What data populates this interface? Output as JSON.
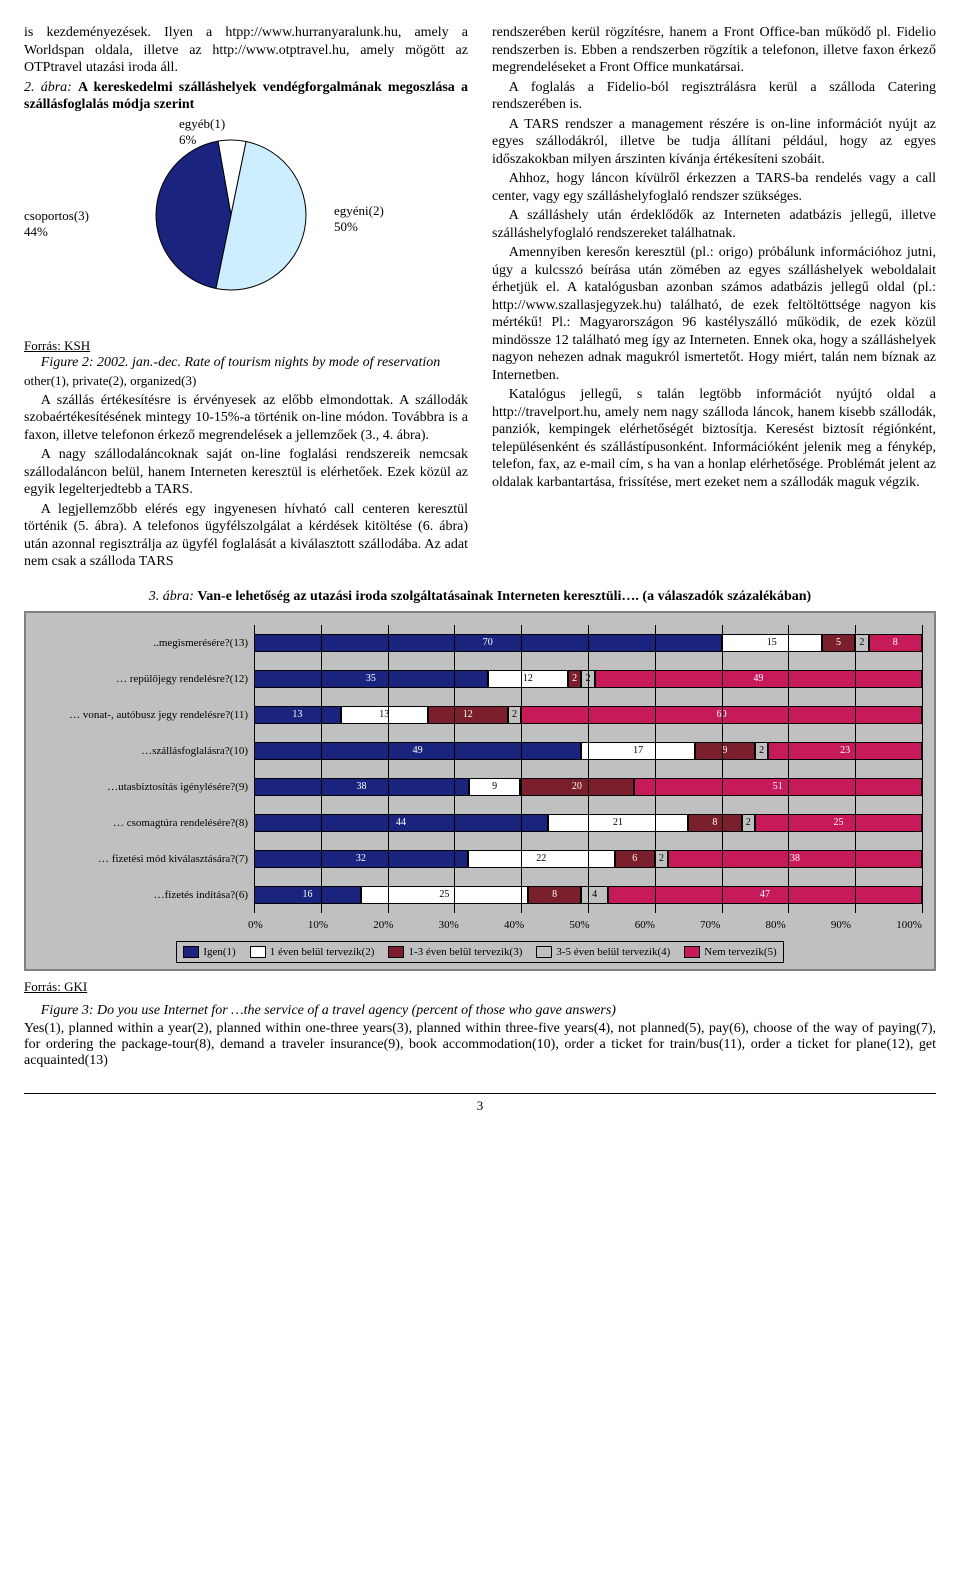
{
  "left_col": {
    "p1": "is kezdeményezések. Ilyen a htpp://www.hurranyaralunk.hu, amely a Worldspan oldala, illetve az http://www.otptravel.hu, amely mögött az OTPtravel utazási iroda áll.",
    "fig2_title_prefix": "2. ábra:",
    "fig2_title": " A kereskedelmi szálláshelyek vendégforgalmának megoszlása a szállásfoglalás módja szerint",
    "pie": {
      "type": "pie",
      "slices": [
        {
          "label": "csoportos(3)",
          "pct_label": "44%",
          "value": 44,
          "color": "#1a237e"
        },
        {
          "label": "egyéb(1)",
          "pct_label": "6%",
          "value": 6,
          "color": "#ffffff"
        },
        {
          "label": "egyéni(2)",
          "pct_label": "50%",
          "value": 50,
          "color": "#cceeff"
        }
      ],
      "stroke": "#000000",
      "radius": 75
    },
    "source": "Forrás: KSH",
    "fig2_caption_a": "Figure 2: 2002. jan.-dec. Rate of tourism nights by mode of reservation",
    "fig2_caption_b": "other(1), private(2), organized(3)",
    "p2": "A szállás értékesítésre is érvényesek az előbb elmondottak. A szállodák szobaértékesítésének mintegy 10-15%-a történik on-line módon. Továbbra is a faxon, illetve telefonon érkező megrendelések a jellemzőek (3., 4. ábra).",
    "p3": "A nagy szállodaláncoknak saját on-line foglalási rendszereik nemcsak szállodaláncon belül, hanem Interneten keresztül is elérhetőek. Ezek közül az egyik legelterjedtebb a TARS.",
    "p4": "A legjellemzőbb elérés egy ingyenesen hívható call centeren keresztül történik (5. ábra). A telefonos ügyfélszolgálat a kérdések kitöltése (6. ábra) után azonnal regisztrálja az ügyfél foglalását a kiválasztott szállodába. Az adat nem csak a szálloda TARS"
  },
  "right_col": {
    "p1": "rendszerében kerül rögzítésre, hanem a Front Office-ban működő pl. Fidelio rendszerben is. Ebben a rendszerben rögzítik a telefonon, illetve faxon érkező megrendeléseket a Front Office munkatársai.",
    "p2": "A foglalás a Fidelio-ból regisztrálásra kerül a szálloda Catering rendszerében is.",
    "p3": "A TARS rendszer a management részére is on-line információt nyújt az egyes szállodákról, illetve be tudja állítani például, hogy az egyes időszakokban milyen árszinten kívánja értékesíteni szobáit.",
    "p4": "Ahhoz, hogy láncon kívülről érkezzen a TARS-ba rendelés vagy a call center, vagy egy szálláshelyfoglaló rendszer szükséges.",
    "p5": "A szálláshely után érdeklődők az Interneten adatbázis jellegű, illetve szálláshelyfoglaló rendszereket találhatnak.",
    "p6": "Amennyiben keresőn keresztül (pl.: origo) próbálunk információhoz jutni, úgy a kulcsszó beírása után zömében az egyes szálláshelyek weboldalait érhetjük el. A katalógusban azonban számos adatbázis jellegű oldal (pl.: http://www.szallasjegyzek.hu) található, de ezek feltöltöttsége nagyon kis mértékű! Pl.: Magyarországon 96 kastélyszálló működik, de ezek közül mindössze 12 található meg így az Interneten. Ennek oka, hogy a szálláshelyek nagyon nehezen adnak magukról ismertetőt. Hogy miért, talán nem bíznak az Internetben.",
    "p7": "Katalógus jellegű, s talán legtöbb információt nyújtó oldal a http://travelport.hu, amely nem nagy szálloda láncok, hanem kisebb szállodák, panziók, kempingek elérhetőségét biztosítja. Keresést biztosít régiónként, településenként és szállástípusonként. Információként jelenik meg a fénykép, telefon, fax, az e-mail cím, s ha van a honlap elérhetősége. Problémát jelent az oldalak karbantartása, frissítése, mert ezeket nem a szállodák maguk végzik."
  },
  "fig3": {
    "title_prefix": "3. ábra:",
    "title": " Van-e lehetőség az utazási iroda szolgáltatásainak Interneten keresztüli…. (a válaszadók százalékában)",
    "type": "stacked-horizontal-bar",
    "colors": {
      "s1": "#1a237e",
      "s2": "#ffffff",
      "s3": "#7a1f2b",
      "s4": "#c0c0c0",
      "s5": "#c61a5a",
      "grid": "#000000",
      "bg": "#c0c0c0"
    },
    "series_labels": [
      "Igen(1)",
      "1 éven belül tervezik(2)",
      "1-3 éven belül tervezik(3)",
      "3-5 éven belül tervezik(4)",
      "Nem tervezik(5)"
    ],
    "xticks": [
      "0%",
      "10%",
      "20%",
      "30%",
      "40%",
      "50%",
      "60%",
      "70%",
      "80%",
      "90%",
      "100%"
    ],
    "rows": [
      {
        "label": "..megismerésére?(13)",
        "values": [
          70,
          15,
          5,
          2,
          8
        ]
      },
      {
        "label": "… repülőjegy rendelésre?(12)",
        "values": [
          35,
          12,
          2,
          2,
          49
        ]
      },
      {
        "label": "… vonat-, autóbusz jegy rendelésre?(11)",
        "values": [
          13,
          13,
          12,
          2,
          60
        ]
      },
      {
        "label": "…szállásfoglalásra?(10)",
        "values": [
          49,
          17,
          9,
          2,
          23
        ]
      },
      {
        "label": "…utasbiztosítás igénylésére?(9)",
        "values": [
          38,
          9,
          20,
          0,
          51
        ]
      },
      {
        "label": "… csomagtúra rendelésére?(8)",
        "values": [
          44,
          21,
          8,
          2,
          25
        ]
      },
      {
        "label": "… fizetési mód kiválasztására?(7)",
        "values": [
          32,
          22,
          6,
          2,
          38
        ]
      },
      {
        "label": "…fizetés indítása?(6)",
        "values": [
          16,
          25,
          8,
          4,
          47
        ]
      }
    ],
    "source": "Forrás: GKI",
    "caption": "Figure 3: Do you use Internet for …the service of a travel agency (percent of those who gave answers)",
    "explain": "Yes(1), planned within a year(2), planned within one-three years(3), planned within three-five years(4), not planned(5), pay(6), choose of the way of paying(7), for ordering the package-tour(8), demand a traveler insurance(9), book accommodation(10), order a ticket for train/bus(11), order a ticket for plane(12), get acquainted(13)"
  },
  "page_number": "3"
}
